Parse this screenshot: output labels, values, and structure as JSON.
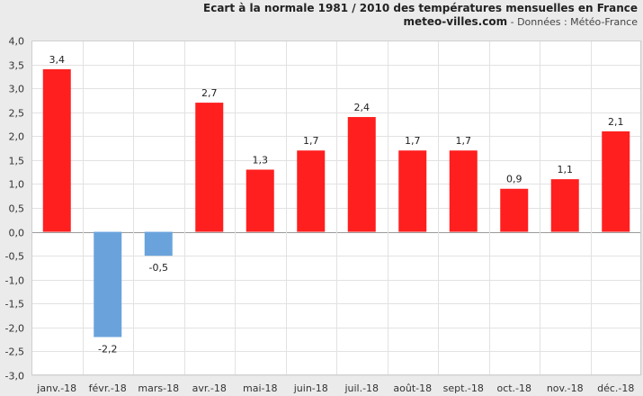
{
  "header": {
    "title": "Ecart à la normale 1981 / 2010 des températures mensuelles en France",
    "site": "meteo-villes.com",
    "source": " - Données : Météo-France"
  },
  "chart_data": {
    "type": "bar",
    "categories": [
      "janv.-18",
      "févr.-18",
      "mars-18",
      "avr.-18",
      "mai-18",
      "juin-18",
      "juil.-18",
      "août-18",
      "sept.-18",
      "oct.-18",
      "nov.-18",
      "déc.-18"
    ],
    "values": [
      3.4,
      -2.2,
      -0.5,
      2.7,
      1.3,
      1.7,
      2.4,
      1.7,
      1.7,
      0.9,
      1.1,
      2.1
    ],
    "data_labels": [
      "3,4",
      "-2,2",
      "-0,5",
      "2,7",
      "1,3",
      "1,7",
      "2,4",
      "1,7",
      "1,7",
      "0,9",
      "1,1",
      "2,1"
    ],
    "ylim": [
      -3.0,
      4.0
    ],
    "yticks": [
      4.0,
      3.5,
      3.0,
      2.5,
      2.0,
      1.5,
      1.0,
      0.5,
      0.0,
      -0.5,
      -1.0,
      -1.5,
      -2.0,
      -2.5,
      -3.0
    ],
    "ytick_labels": [
      "4,0",
      "3,5",
      "3,0",
      "2,5",
      "2,0",
      "1,5",
      "1,0",
      "0,5",
      "0,0",
      "-0,5",
      "-1,0",
      "-1,5",
      "-2,0",
      "-2,5",
      "-3,0"
    ],
    "grid": true,
    "colors": {
      "positive": "#ff1f1f",
      "negative": "#6aa3dc"
    }
  }
}
